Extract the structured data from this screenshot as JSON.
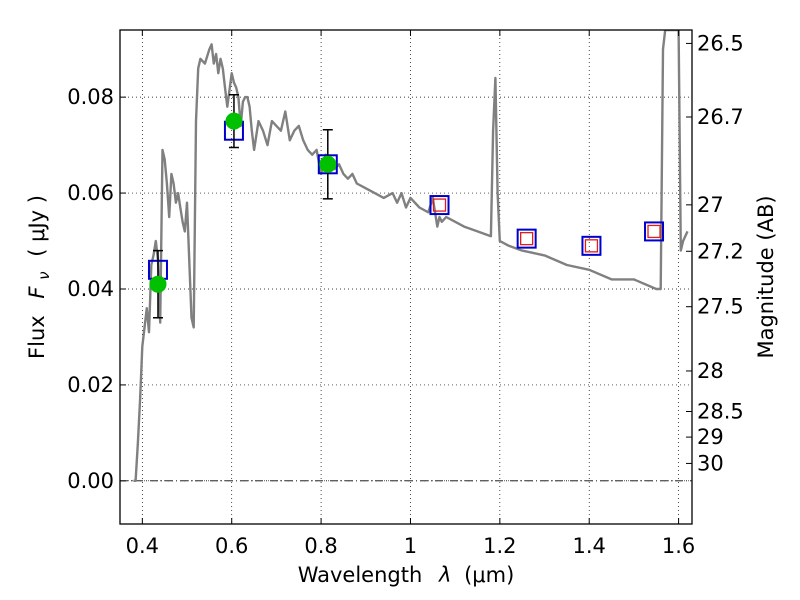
{
  "chart_data": {
    "type": "scatter",
    "xlabel_text": "Wavelength",
    "xlabel_symbol": "λ",
    "xlabel_unit": "(μm)",
    "ylabel_text": "Flux",
    "ylabel_symbol": "F",
    "ylabel_subscript": "ν",
    "ylabel_unit": "( μJy )",
    "y2label": "Magnitude (AB)",
    "xlim": [
      0.35,
      1.63
    ],
    "ylim": [
      -0.009,
      0.094
    ],
    "grid": true,
    "x_ticks": [
      {
        "value": 0.4,
        "label": "0.4"
      },
      {
        "value": 0.6,
        "label": "0.6"
      },
      {
        "value": 0.8,
        "label": "0.8"
      },
      {
        "value": 1.0,
        "label": "1"
      },
      {
        "value": 1.2,
        "label": "1.2"
      },
      {
        "value": 1.4,
        "label": "1.4"
      },
      {
        "value": 1.6,
        "label": "1.6"
      }
    ],
    "y_ticks": [
      {
        "value": 0.0,
        "label": "0.00"
      },
      {
        "value": 0.02,
        "label": "0.02"
      },
      {
        "value": 0.04,
        "label": "0.04"
      },
      {
        "value": 0.06,
        "label": "0.06"
      },
      {
        "value": 0.08,
        "label": "0.08"
      }
    ],
    "mag_ticks": [
      {
        "value": 26.5,
        "label": "26.5"
      },
      {
        "value": 26.7,
        "label": "26.7"
      },
      {
        "value": 27.0,
        "label": "27"
      },
      {
        "value": 27.2,
        "label": "27.2"
      },
      {
        "value": 27.5,
        "label": "27.5"
      },
      {
        "value": 28.0,
        "label": "28"
      },
      {
        "value": 28.5,
        "label": "28.5"
      },
      {
        "value": 29.0,
        "label": "29"
      },
      {
        "value": 30.0,
        "label": "30"
      }
    ],
    "model_spectrum": {
      "color": "#808080",
      "x": [
        0.38,
        0.385,
        0.39,
        0.395,
        0.4,
        0.41,
        0.415,
        0.42,
        0.425,
        0.43,
        0.435,
        0.44,
        0.445,
        0.45,
        0.455,
        0.46,
        0.465,
        0.47,
        0.475,
        0.48,
        0.485,
        0.49,
        0.495,
        0.5,
        0.51,
        0.515,
        0.52,
        0.525,
        0.53,
        0.54,
        0.55,
        0.555,
        0.56,
        0.565,
        0.57,
        0.575,
        0.58,
        0.585,
        0.59,
        0.6,
        0.605,
        0.61,
        0.615,
        0.62,
        0.625,
        0.63,
        0.635,
        0.64,
        0.645,
        0.65,
        0.66,
        0.67,
        0.68,
        0.69,
        0.7,
        0.71,
        0.72,
        0.73,
        0.74,
        0.75,
        0.76,
        0.77,
        0.78,
        0.79,
        0.8,
        0.81,
        0.82,
        0.83,
        0.84,
        0.85,
        0.86,
        0.87,
        0.88,
        0.9,
        0.92,
        0.94,
        0.96,
        0.97,
        0.98,
        0.99,
        1.0,
        1.02,
        1.04,
        1.05,
        1.06,
        1.065,
        1.07,
        1.08,
        1.1,
        1.12,
        1.15,
        1.18,
        1.185,
        1.19,
        1.195,
        1.2,
        1.22,
        1.25,
        1.3,
        1.35,
        1.4,
        1.45,
        1.5,
        1.55,
        1.56,
        1.565,
        1.57,
        1.58,
        1.59,
        1.6,
        1.605,
        1.61,
        1.62
      ],
      "y": [
        0.0,
        0.0,
        0.008,
        0.017,
        0.028,
        0.036,
        0.031,
        0.045,
        0.047,
        0.05,
        0.046,
        0.033,
        0.069,
        0.067,
        0.062,
        0.055,
        0.064,
        0.062,
        0.058,
        0.06,
        0.057,
        0.054,
        0.052,
        0.058,
        0.034,
        0.032,
        0.075,
        0.086,
        0.088,
        0.087,
        0.09,
        0.091,
        0.087,
        0.089,
        0.085,
        0.088,
        0.086,
        0.082,
        0.078,
        0.085,
        0.083,
        0.082,
        0.08,
        0.074,
        0.079,
        0.08,
        0.08,
        0.078,
        0.073,
        0.069,
        0.075,
        0.073,
        0.07,
        0.075,
        0.074,
        0.073,
        0.077,
        0.071,
        0.073,
        0.074,
        0.071,
        0.069,
        0.068,
        0.069,
        0.064,
        0.068,
        0.066,
        0.065,
        0.066,
        0.064,
        0.063,
        0.064,
        0.062,
        0.061,
        0.06,
        0.059,
        0.06,
        0.058,
        0.06,
        0.057,
        0.059,
        0.057,
        0.056,
        0.059,
        0.053,
        0.055,
        0.054,
        0.055,
        0.054,
        0.053,
        0.052,
        0.051,
        0.073,
        0.084,
        0.06,
        0.05,
        0.049,
        0.048,
        0.047,
        0.045,
        0.044,
        0.042,
        0.042,
        0.04,
        0.04,
        0.09,
        0.094,
        0.094,
        0.094,
        0.094,
        0.048,
        0.05,
        0.052
      ]
    },
    "model_photometry": {
      "name": "",
      "x": [
        0.435,
        0.605,
        0.815,
        1.065,
        1.26,
        1.405,
        1.545
      ],
      "y": [
        0.044,
        0.073,
        0.066,
        0.0575,
        0.0505,
        0.049,
        0.052
      ],
      "marker": "open-square",
      "color": "#0000cc"
    },
    "fit_photometry": {
      "x": [
        1.065,
        1.26,
        1.405,
        1.545
      ],
      "y": [
        0.0575,
        0.0505,
        0.049,
        0.052
      ],
      "marker": "small-open-square",
      "color": "#e01c1c"
    },
    "observed": {
      "x": [
        0.435,
        0.605,
        0.815
      ],
      "y": [
        0.041,
        0.075,
        0.066
      ],
      "yerr": [
        0.007,
        0.0055,
        0.0072
      ],
      "marker": "filled-circle",
      "color": "#00c000"
    },
    "zero_line_style": "dash-dot"
  }
}
